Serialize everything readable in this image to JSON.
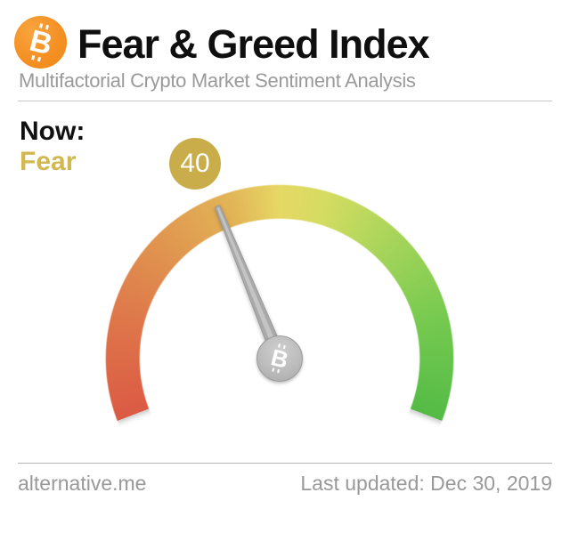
{
  "header": {
    "title": "Fear & Greed Index",
    "subtitle": "Multifactorial Crypto Market Sentiment Analysis"
  },
  "status": {
    "now_label": "Now:",
    "sentiment": "Fear"
  },
  "gauge": {
    "value": 40,
    "min": 0,
    "max": 100,
    "arc_start_deg": -111,
    "arc_sweep_deg": 222
  },
  "footer": {
    "site": "alternative.me",
    "last_updated": "Last updated: Dec 30, 2019"
  },
  "colors": {
    "bitcoin_orange": "#f49024",
    "sentiment_gold": "#d2b850",
    "badge_gold": "#c9ad4b",
    "gauge_red": "#db5a43",
    "gauge_orange": "#e0964f",
    "gauge_yellow": "#e6d865",
    "gauge_yellow_green": "#a6d45a",
    "gauge_green": "#53bb45",
    "needle_gray": "#a9a9a9",
    "muted_text": "#999999"
  },
  "chart_data": {
    "type": "gauge",
    "title": "Fear & Greed Index",
    "subtitle": "Multifactorial Crypto Market Sentiment Analysis",
    "value": 40,
    "classification": "Fear",
    "range": [
      0,
      100
    ],
    "arc_sweep_degrees": 222,
    "color_stops": [
      {
        "value": 0,
        "color": "#db5a43"
      },
      {
        "value": 25,
        "color": "#e0964f"
      },
      {
        "value": 50,
        "color": "#e6d865"
      },
      {
        "value": 75,
        "color": "#a6d45a"
      },
      {
        "value": 100,
        "color": "#53bb45"
      }
    ],
    "last_updated": "Dec 30, 2019",
    "source_site": "alternative.me"
  }
}
